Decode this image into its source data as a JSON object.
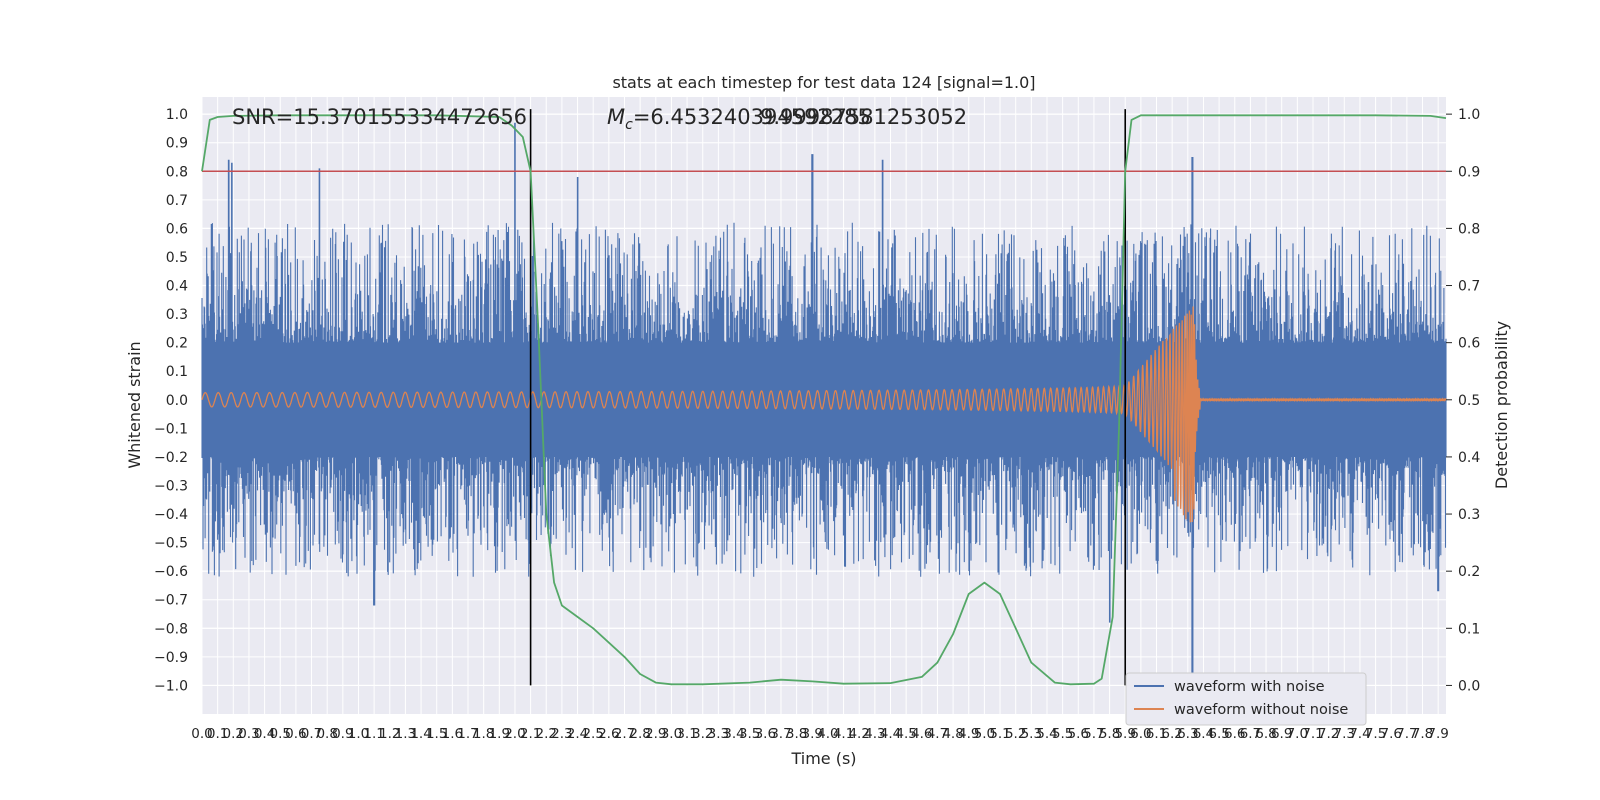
{
  "chart_data": {
    "type": "line",
    "title": "stats at each timestep for test data 124 [signal=1.0]",
    "xlabel": "Time (s)",
    "ylabel": "Whitened strain",
    "ylabel_right": "Detection probability",
    "xlim": [
      0.0,
      7.95
    ],
    "ylim": [
      -1.1,
      1.06
    ],
    "ylim_right": [
      -0.05,
      1.03
    ],
    "x_tick_step": 0.1,
    "x_tick_max": 7.9,
    "y_ticks": [
      -1.0,
      -0.9,
      -0.8,
      -0.7,
      -0.6,
      -0.5,
      -0.4,
      -0.3,
      -0.2,
      -0.1,
      0.0,
      0.1,
      0.2,
      0.3,
      0.4,
      0.5,
      0.6,
      0.7,
      0.8,
      0.9,
      1.0
    ],
    "y_ticks_right": [
      0.0,
      0.1,
      0.2,
      0.3,
      0.4,
      0.5,
      0.6,
      0.7,
      0.8,
      0.9,
      1.0
    ],
    "grid": true,
    "legend_position": "lower-right",
    "annotations": {
      "snr": "SNR=15.370155334472656",
      "mc_symbol": "M",
      "mc_subscript": "c",
      "mc_value": "=6.453240394592285",
      "overlap_value": "9.99987581253052"
    },
    "vertical_lines_x": [
      2.1,
      5.9
    ],
    "threshold": {
      "right_axis_value": 0.9,
      "color": "#c44e52"
    },
    "series": [
      {
        "name": "waveform with noise",
        "color": "#4c72b0",
        "description_values": {
          "band_core_abs": 0.2,
          "typical_spike_range": [
            0.35,
            0.6
          ],
          "max_peaks": [
            {
              "x": 0.17,
              "y": 0.84
            },
            {
              "x": 0.19,
              "y": 0.83
            },
            {
              "x": 0.75,
              "y": 0.81
            },
            {
              "x": 2.0,
              "y": 0.97
            },
            {
              "x": 2.4,
              "y": 0.78
            },
            {
              "x": 3.9,
              "y": 0.86
            },
            {
              "x": 4.35,
              "y": 0.84
            },
            {
              "x": 6.33,
              "y": 0.85
            }
          ],
          "min_peaks": [
            {
              "x": 1.1,
              "y": -0.72
            },
            {
              "x": 5.8,
              "y": -0.78
            },
            {
              "x": 6.33,
              "y": -1.0
            },
            {
              "x": 7.9,
              "y": -0.67
            }
          ]
        }
      },
      {
        "name": "waveform without noise",
        "color": "#dd8452",
        "description_values": {
          "amplitude_start": 0.025,
          "amplitude_at_5_9": 0.12,
          "merger_time": 6.34,
          "merger_peak_max": 0.33,
          "merger_peak_min": -0.46,
          "ringdown_end": 6.38
        }
      },
      {
        "name": "detection probability",
        "color": "#55a868",
        "x": [
          0.0,
          0.05,
          0.1,
          0.2,
          0.5,
          1.0,
          1.5,
          1.9,
          1.98,
          2.05,
          2.1,
          2.15,
          2.2,
          2.25,
          2.3,
          2.4,
          2.5,
          2.7,
          2.8,
          2.9,
          3.0,
          3.2,
          3.5,
          3.7,
          3.9,
          4.1,
          4.4,
          4.6,
          4.7,
          4.8,
          4.9,
          5.0,
          5.1,
          5.2,
          5.3,
          5.45,
          5.55,
          5.7,
          5.75,
          5.82,
          5.86,
          5.9,
          5.94,
          6.0,
          6.5,
          7.0,
          7.5,
          7.85,
          7.95
        ],
        "y": [
          0.9,
          0.99,
          0.995,
          0.997,
          0.998,
          0.998,
          0.998,
          0.995,
          0.98,
          0.96,
          0.9,
          0.62,
          0.3,
          0.18,
          0.14,
          0.12,
          0.1,
          0.05,
          0.02,
          0.005,
          0.002,
          0.002,
          0.005,
          0.01,
          0.007,
          0.003,
          0.004,
          0.015,
          0.04,
          0.09,
          0.16,
          0.18,
          0.16,
          0.1,
          0.04,
          0.005,
          0.002,
          0.003,
          0.012,
          0.12,
          0.45,
          0.9,
          0.99,
          0.998,
          0.998,
          0.998,
          0.998,
          0.997,
          0.993
        ]
      }
    ]
  }
}
